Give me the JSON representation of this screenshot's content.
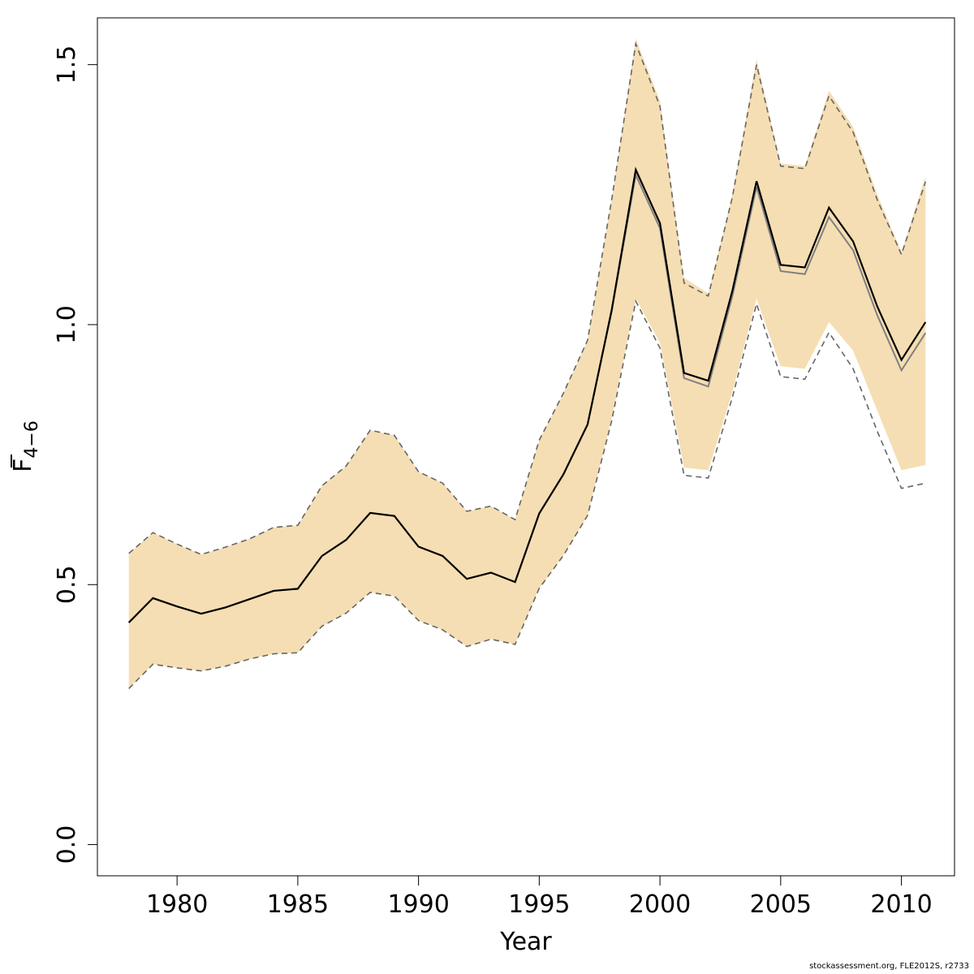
{
  "chart_data": {
    "type": "line",
    "xlabel": "Year",
    "ylabel": {
      "base": "F",
      "subscript": "4−6",
      "overline": true
    },
    "xlim": [
      1976.7,
      2012.2
    ],
    "ylim": [
      -0.06,
      1.59
    ],
    "x_ticks": [
      1980,
      1985,
      1990,
      1995,
      2000,
      2005,
      2010
    ],
    "y_ticks": [
      0.0,
      0.5,
      1.0,
      1.5
    ],
    "y_tick_labels": [
      "0.0",
      "0.5",
      "1.0",
      "1.5"
    ],
    "grid": false,
    "colors": {
      "band": "#F5DEB3",
      "current": "#000000",
      "previous": "#808080",
      "previous_ci": "#666666"
    },
    "x": [
      1978,
      1979,
      1980,
      1981,
      1982,
      1983,
      1984,
      1985,
      1986,
      1987,
      1988,
      1989,
      1990,
      1991,
      1992,
      1993,
      1994,
      1995,
      1996,
      1997,
      1998,
      1999,
      2000,
      2001,
      2002,
      2003,
      2004,
      2005,
      2006,
      2007,
      2008,
      2009,
      2010,
      2011
    ],
    "series": [
      {
        "role": "current_estimate",
        "values": [
          0.427,
          0.474,
          0.458,
          0.444,
          0.456,
          0.472,
          0.488,
          0.492,
          0.555,
          0.586,
          0.638,
          0.632,
          0.573,
          0.555,
          0.511,
          0.523,
          0.505,
          0.637,
          0.712,
          0.808,
          1.028,
          1.298,
          1.195,
          0.907,
          0.892,
          1.065,
          1.276,
          1.115,
          1.11,
          1.225,
          1.16,
          1.035,
          0.932,
          1.005
        ]
      },
      {
        "role": "current_ci_band",
        "lower": [
          0.3,
          0.347,
          0.34,
          0.334,
          0.343,
          0.357,
          0.367,
          0.369,
          0.42,
          0.445,
          0.485,
          0.478,
          0.431,
          0.413,
          0.381,
          0.395,
          0.385,
          0.493,
          0.556,
          0.633,
          0.82,
          1.05,
          0.965,
          0.725,
          0.72,
          0.87,
          1.05,
          0.92,
          0.915,
          1.005,
          0.95,
          0.835,
          0.72,
          0.73
        ],
        "upper": [
          0.56,
          0.6,
          0.578,
          0.558,
          0.572,
          0.588,
          0.61,
          0.614,
          0.69,
          0.728,
          0.797,
          0.787,
          0.717,
          0.695,
          0.641,
          0.651,
          0.625,
          0.778,
          0.868,
          0.97,
          1.24,
          1.55,
          1.43,
          1.09,
          1.06,
          1.25,
          1.51,
          1.31,
          1.305,
          1.45,
          1.38,
          1.25,
          1.14,
          1.285
        ]
      },
      {
        "role": "previous_estimate",
        "values": [
          0.427,
          0.474,
          0.458,
          0.444,
          0.456,
          0.472,
          0.488,
          0.492,
          0.555,
          0.586,
          0.638,
          0.632,
          0.573,
          0.555,
          0.511,
          0.523,
          0.505,
          0.637,
          0.712,
          0.808,
          1.025,
          1.288,
          1.185,
          0.897,
          0.881,
          1.055,
          1.265,
          1.103,
          1.097,
          1.207,
          1.143,
          1.018,
          0.912,
          0.984
        ]
      },
      {
        "role": "previous_ci",
        "lower": [
          0.3,
          0.347,
          0.34,
          0.334,
          0.343,
          0.357,
          0.367,
          0.369,
          0.42,
          0.445,
          0.485,
          0.478,
          0.431,
          0.413,
          0.381,
          0.395,
          0.385,
          0.493,
          0.556,
          0.633,
          0.815,
          1.045,
          0.955,
          0.71,
          0.705,
          0.86,
          1.04,
          0.9,
          0.895,
          0.985,
          0.915,
          0.795,
          0.685,
          0.695
        ],
        "upper": [
          0.56,
          0.6,
          0.578,
          0.558,
          0.572,
          0.588,
          0.61,
          0.614,
          0.69,
          0.728,
          0.797,
          0.787,
          0.717,
          0.695,
          0.641,
          0.651,
          0.625,
          0.778,
          0.868,
          0.97,
          1.24,
          1.54,
          1.42,
          1.08,
          1.055,
          1.245,
          1.5,
          1.305,
          1.3,
          1.44,
          1.37,
          1.24,
          1.135,
          1.275
        ]
      }
    ]
  },
  "footer": "stockassessment.org, FLE2012S, r2733"
}
